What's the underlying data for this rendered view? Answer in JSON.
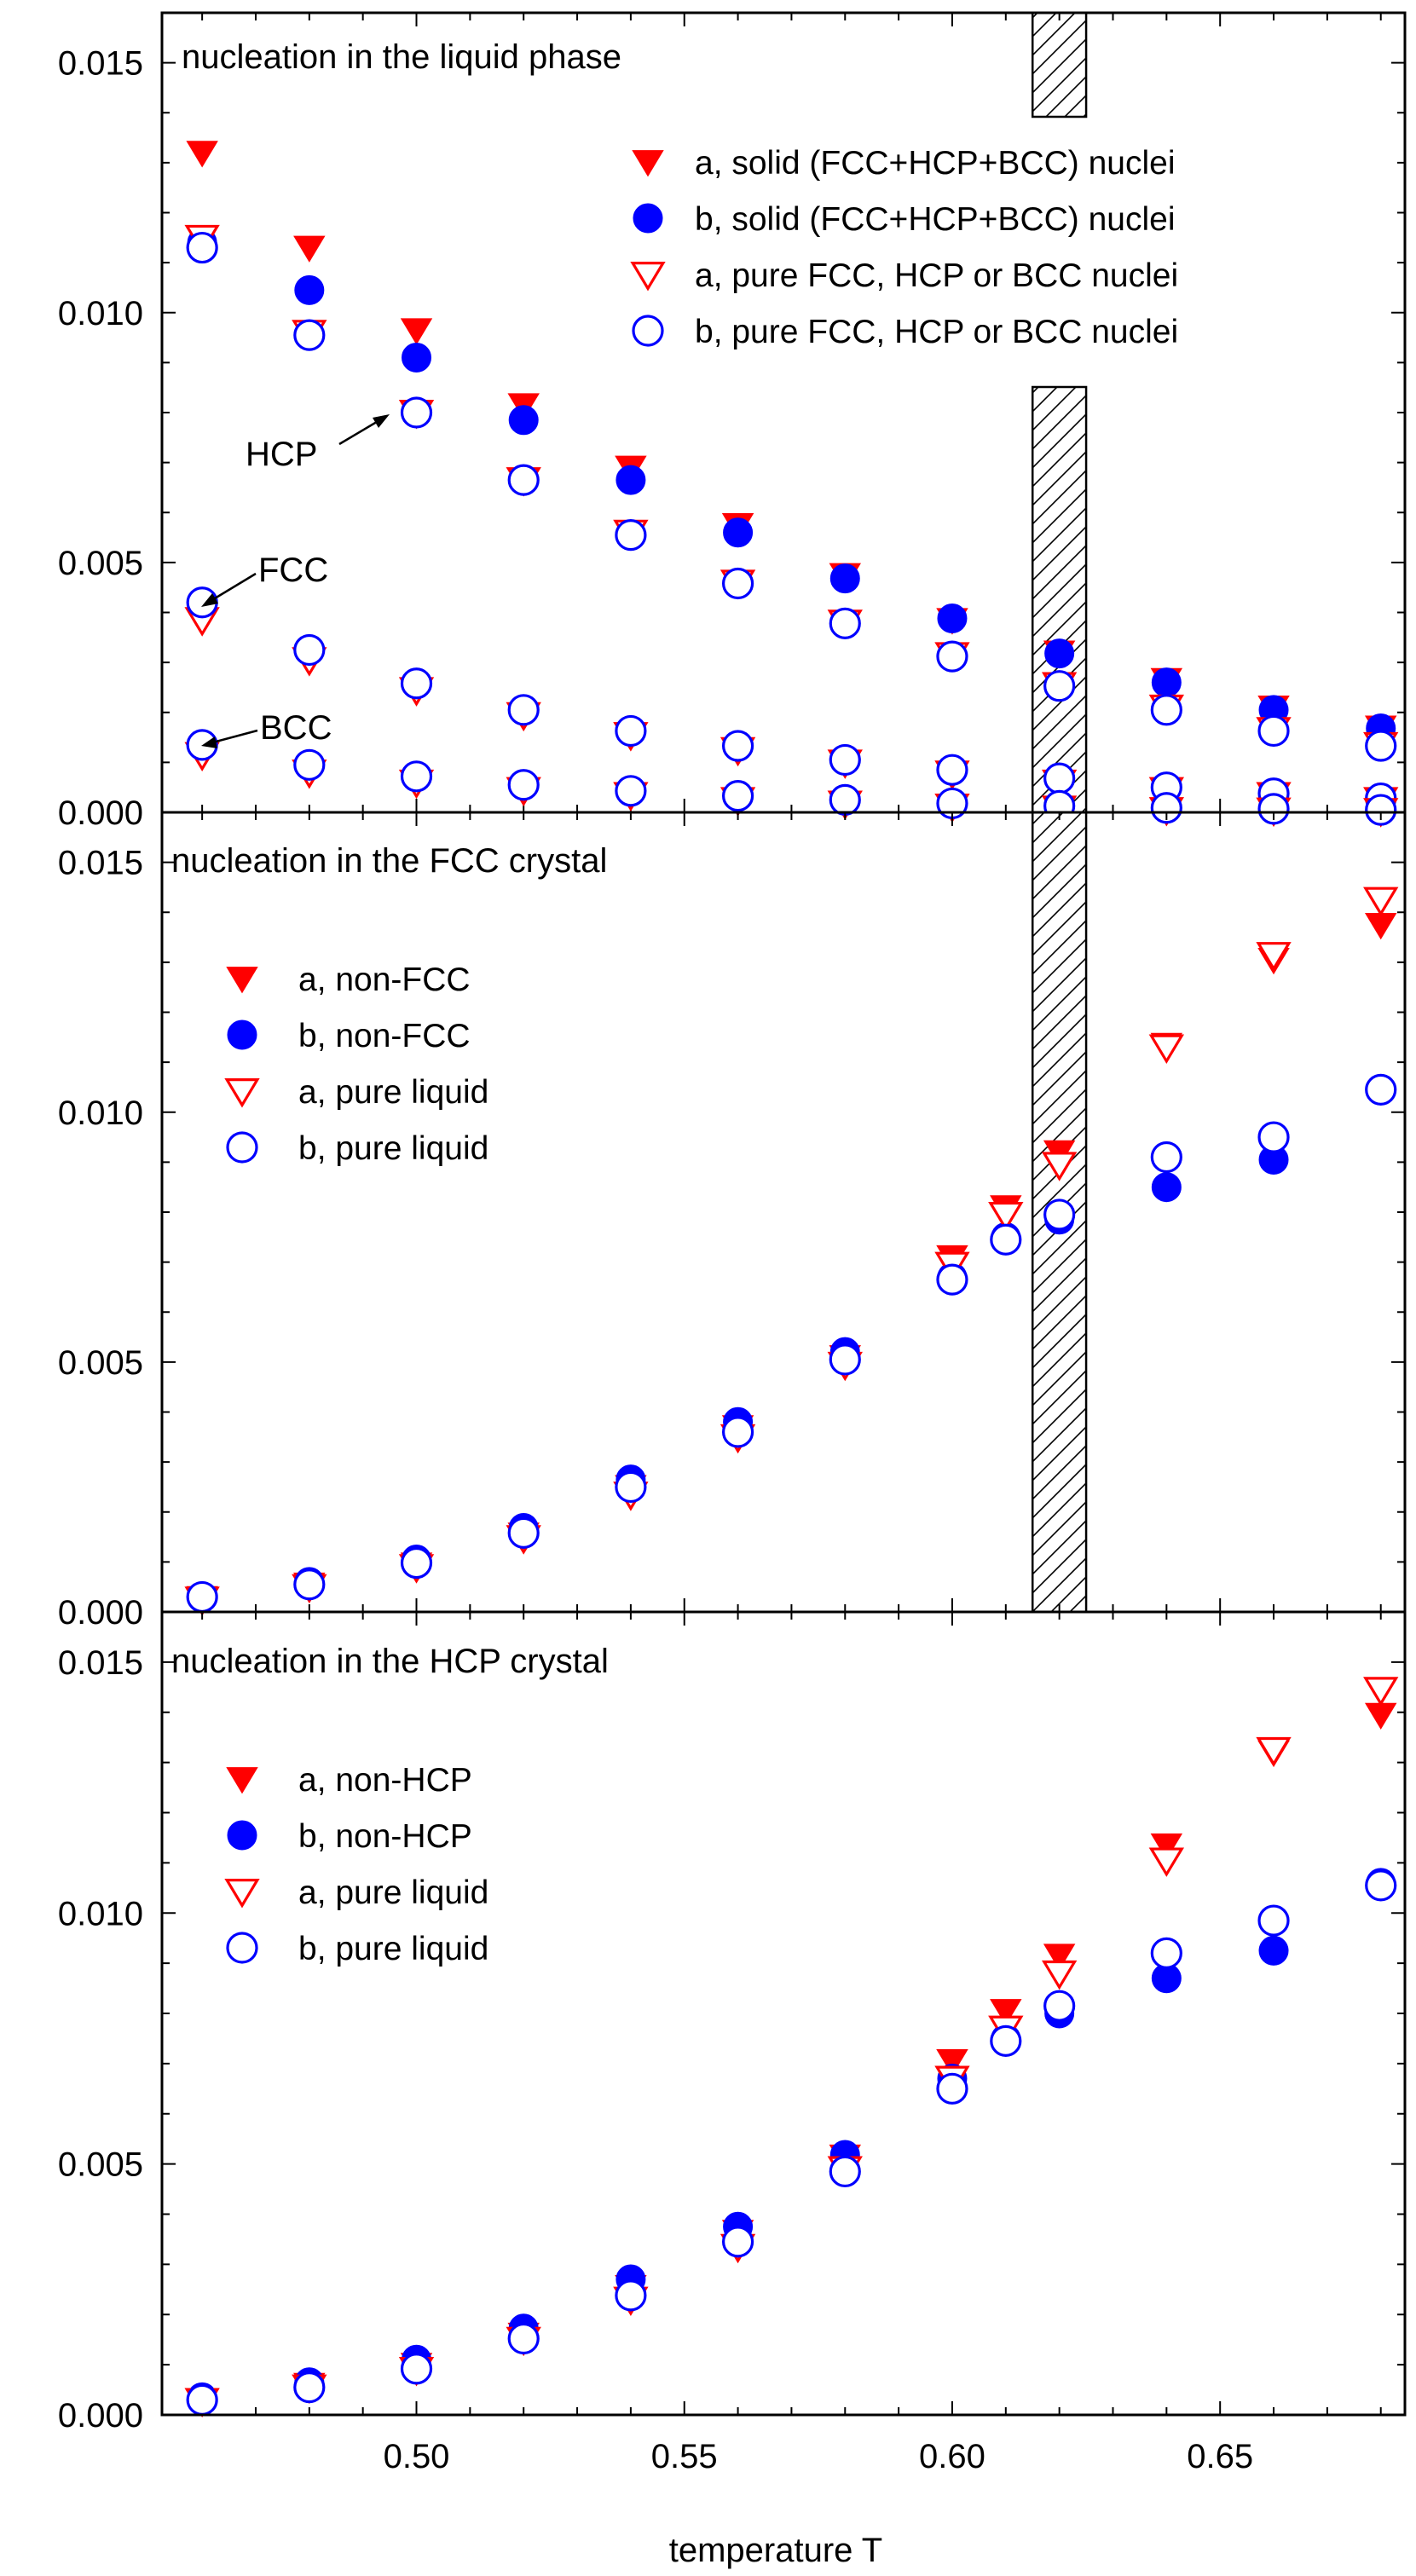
{
  "figure": {
    "xlabel": "temperature T",
    "x_ticks": [
      "0.50",
      "0.55",
      "0.60",
      "0.65"
    ],
    "y_ticks": [
      "0.000",
      "0.005",
      "0.010",
      "0.015"
    ]
  },
  "colors": {
    "red": "#ff0000",
    "blue": "#0000ff",
    "hatch": "#000000"
  },
  "chart_data": [
    {
      "type": "scatter",
      "title": "nucleation in the liquid phase",
      "xlim": [
        0.4525,
        0.6845
      ],
      "ylim": [
        0,
        0.016
      ],
      "shaded_band": [
        0.615,
        0.625
      ],
      "annotations": [
        "HCP",
        "FCC",
        "BCC"
      ],
      "series": [
        {
          "name": "a, solid (FCC+HCP+BCC) nuclei",
          "marker": "filled-triangle-down",
          "color": "#ff0000",
          "x": [
            0.46,
            0.48,
            0.5,
            0.52,
            0.54,
            0.56,
            0.58,
            0.6,
            0.62,
            0.64,
            0.66,
            0.68
          ],
          "y": [
            0.0132,
            0.0113,
            0.00965,
            0.00815,
            0.0069,
            0.00575,
            0.00475,
            0.00385,
            0.0032,
            0.00265,
            0.0021,
            0.0017
          ]
        },
        {
          "name": "b, solid (FCC+HCP+BCC) nuclei",
          "marker": "filled-circle",
          "color": "#0000ff",
          "x": [
            0.46,
            0.48,
            0.5,
            0.52,
            0.54,
            0.56,
            0.58,
            0.6,
            0.62,
            0.64,
            0.66,
            0.68
          ],
          "y": [
            0.0114,
            0.01045,
            0.0091,
            0.00785,
            0.00665,
            0.0056,
            0.00468,
            0.00388,
            0.00318,
            0.0026,
            0.00205,
            0.00168
          ]
        },
        {
          "name": "a, pure FCC, HCP or BCC nuclei (HCP)",
          "marker": "open-triangle-down",
          "color": "#ff0000",
          "x": [
            0.46,
            0.48,
            0.5,
            0.52,
            0.54,
            0.56,
            0.58,
            0.6,
            0.62,
            0.64,
            0.66,
            0.68
          ],
          "y": [
            0.0115,
            0.0096,
            0.008,
            0.00665,
            0.0056,
            0.0046,
            0.0038,
            0.00315,
            0.00255,
            0.0021,
            0.00165,
            0.00135
          ]
        },
        {
          "name": "b, pure FCC, HCP or BCC nuclei (HCP)",
          "marker": "open-circle",
          "color": "#0000ff",
          "x": [
            0.46,
            0.48,
            0.5,
            0.52,
            0.54,
            0.56,
            0.58,
            0.6,
            0.62,
            0.64,
            0.66,
            0.68
          ],
          "y": [
            0.0113,
            0.00955,
            0.008,
            0.00665,
            0.00555,
            0.00458,
            0.00378,
            0.00312,
            0.00253,
            0.00205,
            0.00163,
            0.00133
          ]
        },
        {
          "name": "a, pure FCC, HCP or BCC nuclei (FCC)",
          "marker": "open-triangle-down",
          "color": "#ff0000",
          "x": [
            0.46,
            0.48,
            0.5,
            0.52,
            0.54,
            0.56,
            0.58,
            0.6,
            0.62,
            0.64,
            0.66,
            0.68
          ],
          "y": [
            0.00385,
            0.00305,
            0.00245,
            0.00195,
            0.00155,
            0.00125,
            0.001,
            0.00078,
            0.0006,
            0.00045,
            0.00035,
            0.00025
          ]
        },
        {
          "name": "b, pure FCC, HCP or BCC nuclei (FCC)",
          "marker": "open-circle",
          "color": "#0000ff",
          "x": [
            0.46,
            0.48,
            0.5,
            0.52,
            0.54,
            0.56,
            0.58,
            0.6,
            0.62,
            0.64,
            0.66,
            0.68
          ],
          "y": [
            0.0042,
            0.00325,
            0.00258,
            0.00205,
            0.00163,
            0.00133,
            0.00105,
            0.00085,
            0.00068,
            0.0005,
            0.00038,
            0.00028
          ]
        },
        {
          "name": "a, pure FCC, HCP or BCC nuclei (BCC)",
          "marker": "open-triangle-down",
          "color": "#ff0000",
          "x": [
            0.46,
            0.48,
            0.5,
            0.52,
            0.54,
            0.56,
            0.58,
            0.6,
            0.62,
            0.64,
            0.66,
            0.68
          ],
          "y": [
            0.00115,
            0.0008,
            0.0006,
            0.00045,
            0.00035,
            0.00025,
            0.00018,
            0.00012,
            8e-05,
            5e-05,
            4e-05,
            3e-05
          ]
        },
        {
          "name": "b, pure FCC, HCP or BCC nuclei (BCC)",
          "marker": "open-circle",
          "color": "#0000ff",
          "x": [
            0.46,
            0.48,
            0.5,
            0.52,
            0.54,
            0.56,
            0.58,
            0.6,
            0.62,
            0.64,
            0.66,
            0.68
          ],
          "y": [
            0.00135,
            0.00095,
            0.00072,
            0.00055,
            0.00043,
            0.00033,
            0.00025,
            0.00018,
            0.00013,
            9e-05,
            7e-05,
            5e-05
          ]
        }
      ],
      "legend": [
        {
          "label": "a, solid (FCC+HCP+BCC) nuclei",
          "marker": "filled-triangle-down",
          "color": "#ff0000"
        },
        {
          "label": "b, solid (FCC+HCP+BCC) nuclei",
          "marker": "filled-circle",
          "color": "#0000ff"
        },
        {
          "label": "a, pure FCC, HCP or BCC nuclei",
          "marker": "open-triangle-down",
          "color": "#ff0000"
        },
        {
          "label": "b, pure FCC, HCP or BCC nuclei",
          "marker": "open-circle",
          "color": "#0000ff"
        }
      ]
    },
    {
      "type": "scatter",
      "title": "nucleation in the FCC crystal",
      "xlim": [
        0.4525,
        0.6845
      ],
      "ylim": [
        0,
        0.016
      ],
      "shaded_band": [
        0.615,
        0.625
      ],
      "series": [
        {
          "name": "a, non-FCC",
          "marker": "filled-triangle-down",
          "color": "#ff0000",
          "x": [
            0.46,
            0.48,
            0.5,
            0.52,
            0.54,
            0.56,
            0.58,
            0.6,
            0.61,
            0.62,
            0.64,
            0.66,
            0.68
          ],
          "y": [
            0.00028,
            0.00055,
            0.00095,
            0.00155,
            0.0025,
            0.0037,
            0.0051,
            0.0071,
            0.0081,
            0.0092,
            0.01135,
            0.01305,
            0.01375
          ]
        },
        {
          "name": "b, non-FCC",
          "marker": "filled-circle",
          "color": "#0000ff",
          "x": [
            0.46,
            0.48,
            0.5,
            0.52,
            0.54,
            0.56,
            0.58,
            0.6,
            0.61,
            0.62,
            0.64,
            0.66,
            0.68
          ],
          "y": [
            0.0003,
            0.0006,
            0.00105,
            0.00168,
            0.00265,
            0.0038,
            0.0052,
            0.0067,
            0.0075,
            0.00785,
            0.0085,
            0.00905,
            0.01045
          ]
        },
        {
          "name": "a, pure liquid",
          "marker": "open-triangle-down",
          "color": "#ff0000",
          "x": [
            0.46,
            0.48,
            0.5,
            0.52,
            0.54,
            0.56,
            0.58,
            0.6,
            0.61,
            0.62,
            0.64,
            0.66,
            0.68
          ],
          "y": [
            0.00025,
            0.0005,
            0.0009,
            0.00148,
            0.00235,
            0.0035,
            0.00495,
            0.00695,
            0.00795,
            0.00895,
            0.0113,
            0.01315,
            0.01425
          ]
        },
        {
          "name": "b, pure liquid",
          "marker": "open-circle",
          "color": "#0000ff",
          "x": [
            0.46,
            0.48,
            0.5,
            0.52,
            0.54,
            0.56,
            0.58,
            0.6,
            0.61,
            0.62,
            0.64,
            0.66,
            0.68
          ],
          "y": [
            0.0003,
            0.00055,
            0.00098,
            0.00158,
            0.0025,
            0.0036,
            0.00505,
            0.00665,
            0.00745,
            0.00795,
            0.0091,
            0.0095,
            0.01045
          ]
        }
      ],
      "legend": [
        {
          "label": "a, non-FCC",
          "marker": "filled-triangle-down",
          "color": "#ff0000"
        },
        {
          "label": "b, non-FCC",
          "marker": "filled-circle",
          "color": "#0000ff"
        },
        {
          "label": "a, pure liquid",
          "marker": "open-triangle-down",
          "color": "#ff0000"
        },
        {
          "label": "b, pure liquid",
          "marker": "open-circle",
          "color": "#0000ff"
        }
      ]
    },
    {
      "type": "scatter",
      "title": "nucleation in the HCP crystal",
      "xlim": [
        0.4525,
        0.6845
      ],
      "ylim": [
        0,
        0.016
      ],
      "series": [
        {
          "name": "a, non-HCP",
          "marker": "filled-triangle-down",
          "color": "#ff0000",
          "x": [
            0.46,
            0.48,
            0.5,
            0.52,
            0.54,
            0.56,
            0.58,
            0.6,
            0.61,
            0.62,
            0.64,
            0.66,
            0.68
          ],
          "y": [
            0.0003,
            0.0006,
            0.001,
            0.0016,
            0.00255,
            0.00365,
            0.00515,
            0.00705,
            0.00805,
            0.00915,
            0.01135,
            0.0132,
            0.01395
          ]
        },
        {
          "name": "b, non-HCP",
          "marker": "filled-circle",
          "color": "#0000ff",
          "x": [
            0.46,
            0.48,
            0.5,
            0.52,
            0.54,
            0.56,
            0.58,
            0.6,
            0.61,
            0.62,
            0.64,
            0.66,
            0.68
          ],
          "y": [
            0.00035,
            0.00065,
            0.0011,
            0.00172,
            0.0027,
            0.00375,
            0.00518,
            0.0067,
            0.0075,
            0.008,
            0.0087,
            0.00925,
            0.0106
          ]
        },
        {
          "name": "a, pure liquid",
          "marker": "open-triangle-down",
          "color": "#ff0000",
          "x": [
            0.46,
            0.48,
            0.5,
            0.52,
            0.54,
            0.56,
            0.58,
            0.6,
            0.61,
            0.62,
            0.64,
            0.66,
            0.68
          ],
          "y": [
            0.00028,
            0.00055,
            0.0009,
            0.0015,
            0.0023,
            0.00335,
            0.0049,
            0.0067,
            0.0077,
            0.0088,
            0.01105,
            0.01325,
            0.01445
          ]
        },
        {
          "name": "b, pure liquid",
          "marker": "open-circle",
          "color": "#0000ff",
          "x": [
            0.46,
            0.48,
            0.5,
            0.52,
            0.54,
            0.56,
            0.58,
            0.6,
            0.61,
            0.62,
            0.64,
            0.66,
            0.68
          ],
          "y": [
            0.0003,
            0.00055,
            0.00092,
            0.00152,
            0.00238,
            0.00345,
            0.00485,
            0.0065,
            0.00745,
            0.00815,
            0.0092,
            0.00985,
            0.01055
          ]
        }
      ],
      "legend": [
        {
          "label": "a, non-HCP",
          "marker": "filled-triangle-down",
          "color": "#ff0000"
        },
        {
          "label": "b, non-HCP",
          "marker": "filled-circle",
          "color": "#0000ff"
        },
        {
          "label": "a, pure liquid",
          "marker": "open-triangle-down",
          "color": "#ff0000"
        },
        {
          "label": "b, pure liquid",
          "marker": "open-circle",
          "color": "#0000ff"
        }
      ]
    }
  ]
}
